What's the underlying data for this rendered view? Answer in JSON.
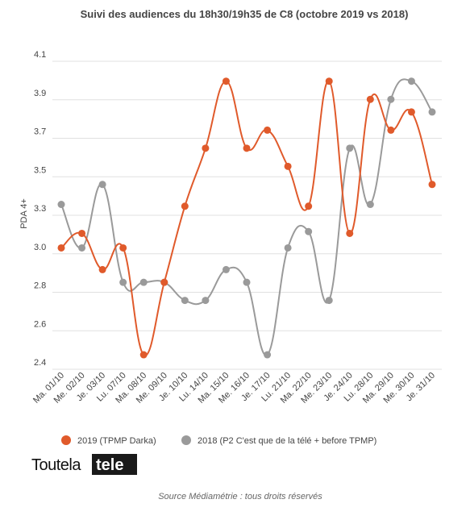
{
  "chart_data": {
    "type": "line",
    "title": "Suivi des audiences du 18h30/19h35 de C8 (octobre 2019 vs 2018)",
    "ylabel": "PDA 4+",
    "xlabel": "",
    "ylim": [
      2.4,
      4.1
    ],
    "y_ticks": [
      "2.4",
      "2.6",
      "2.8",
      "3.0",
      "3.3",
      "3.5",
      "3.7",
      "3.9",
      "4.1"
    ],
    "grid": true,
    "legend_position": "bottom",
    "categories": [
      "Ma. 01/10",
      "Me. 02/10",
      "Je. 03/10",
      "Lu. 07/10",
      "Ma. 08/10",
      "Me. 09/10",
      "Je. 10/10",
      "Lu. 14/10",
      "Ma. 15/10",
      "Me. 16/10",
      "Je. 17/10",
      "Lu. 21/10",
      "Ma. 22/10",
      "Me. 23/10",
      "Je. 24/10",
      "Lu. 28/10",
      "Ma. 29/10",
      "Me. 30/10",
      "Je. 31/10"
    ],
    "series": [
      {
        "name": "2019 (TPMP Darka)",
        "color": "#e05a2b",
        "values": [
          3.07,
          3.15,
          2.95,
          3.07,
          2.48,
          2.88,
          3.3,
          3.62,
          3.99,
          3.62,
          3.72,
          3.52,
          3.3,
          3.99,
          3.15,
          3.89,
          3.72,
          3.82,
          3.42
        ]
      },
      {
        "name": "2018 (P2 C'est que de la télé + before TPMP)",
        "color": "#9a9a9a",
        "values": [
          3.31,
          3.07,
          3.42,
          2.88,
          2.88,
          2.88,
          2.78,
          2.78,
          2.95,
          2.88,
          2.48,
          3.07,
          3.16,
          2.78,
          3.62,
          3.31,
          3.89,
          3.99,
          3.82
        ]
      }
    ]
  },
  "branding": {
    "logo_part1": "Toutela",
    "logo_part2": "tele",
    "logo_bg_color": "#1a1a1a"
  },
  "source": "Source Médiamétrie : tous droits réservés"
}
